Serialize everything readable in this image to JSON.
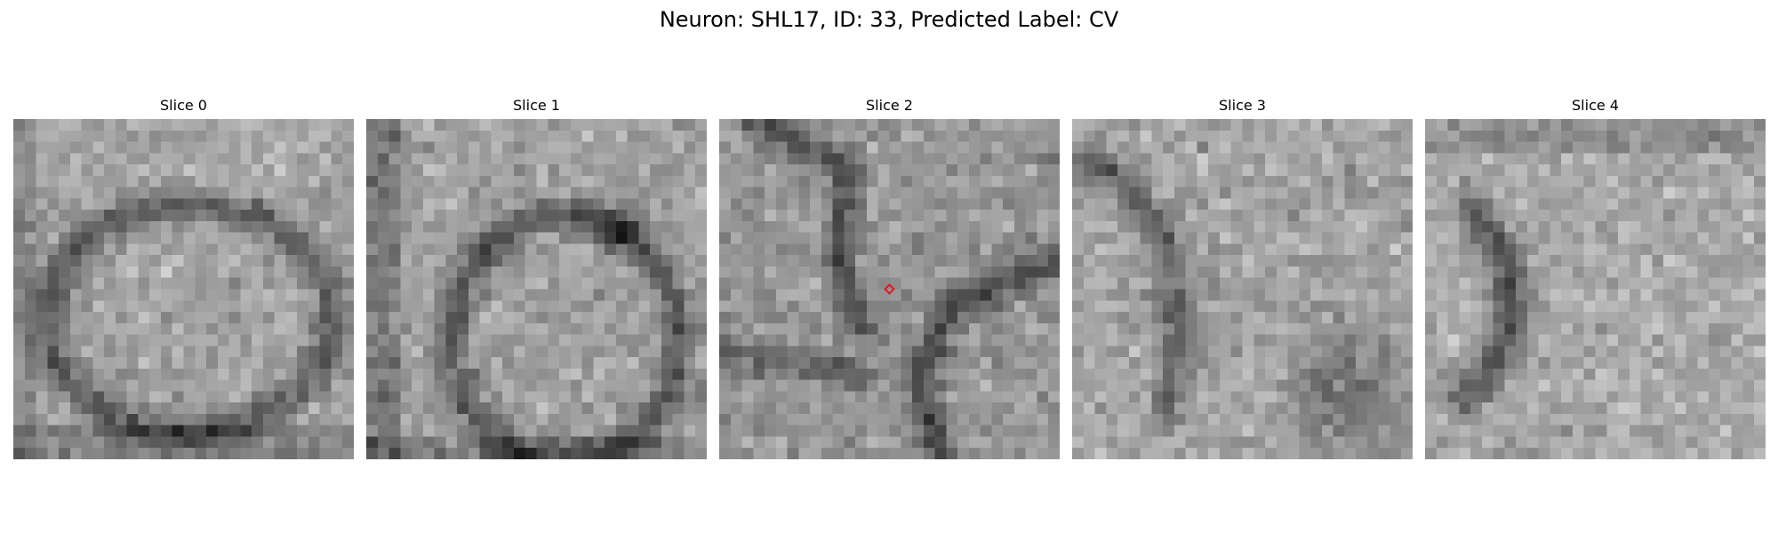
{
  "figure": {
    "title": "Neuron: SHL17, ID: 33, Predicted Label: CV"
  },
  "panels": [
    {
      "label": "Slice 0"
    },
    {
      "label": "Slice 1"
    },
    {
      "label": "Slice 2"
    },
    {
      "label": "Slice 3"
    },
    {
      "label": "Slice 4"
    }
  ],
  "marker": {
    "panel": 2,
    "color": "#e0191c",
    "shape": "diamond"
  },
  "image": {
    "colormap": "grayscale",
    "grid": "30x30 pixels per slice"
  }
}
